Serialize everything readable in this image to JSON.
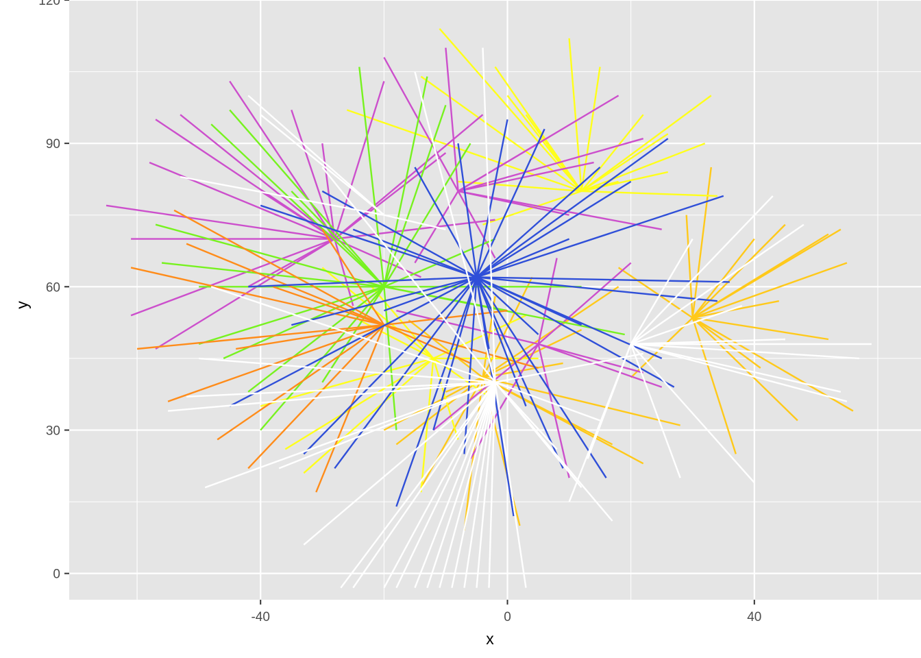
{
  "chart_data": {
    "type": "segments",
    "title": "",
    "xlabel": "x",
    "ylabel": "y",
    "xlim": [
      -71,
      67
    ],
    "ylim": [
      -5.5,
      120
    ],
    "x_ticks": [
      -40,
      0,
      40
    ],
    "x_tick_labels": [
      "-40",
      "0",
      "40"
    ],
    "y_ticks": [
      0,
      30,
      60,
      90,
      120
    ],
    "y_tick_labels": [
      "0",
      "30",
      "60",
      "90",
      "120"
    ],
    "grid": true,
    "panel_background": "#e5e5e5",
    "grid_color": "#ffffff",
    "legend": "none",
    "colors": {
      "blue": "#2f4fd8",
      "magenta": "#cc4fcc",
      "green": "#77f21f",
      "yellow": "#ffff1a",
      "gold": "#ffc91a",
      "orange": "#ff8c1a",
      "white": "#ffffff"
    },
    "series": [
      {
        "color": "#ffc91a",
        "segments": [
          [
            30,
            53.5,
            40,
            70
          ],
          [
            30,
            53.5,
            45,
            73
          ],
          [
            30,
            53.5,
            52,
            71
          ],
          [
            30,
            53.5,
            54,
            72
          ],
          [
            30,
            53.5,
            55,
            65
          ],
          [
            30,
            53.5,
            33,
            85
          ],
          [
            30,
            53.5,
            52,
            49
          ],
          [
            30,
            53.5,
            56,
            34
          ],
          [
            30,
            53.5,
            47,
            32
          ],
          [
            30,
            53.5,
            37,
            25
          ],
          [
            30,
            53.5,
            44,
            57
          ],
          [
            30,
            53.5,
            41,
            43
          ],
          [
            30,
            53.5,
            18,
            64
          ],
          [
            30,
            53.5,
            20,
            41
          ],
          [
            30,
            53.5,
            29,
            75
          ],
          [
            -4,
            41,
            -7,
            9
          ],
          [
            -4,
            41,
            2,
            10
          ],
          [
            -4,
            41,
            17,
            27
          ],
          [
            -4,
            41,
            12,
            51
          ],
          [
            -4,
            41,
            -18,
            27
          ],
          [
            -4,
            41,
            -16,
            53
          ],
          [
            -4,
            41,
            4,
            62
          ],
          [
            -4,
            41,
            -14,
            18
          ],
          [
            -4,
            41,
            22,
            23
          ],
          [
            -4,
            41,
            28,
            31
          ],
          [
            -4,
            41,
            -10,
            38
          ],
          [
            -4,
            41,
            9,
            44
          ],
          [
            -4,
            41,
            -20,
            30
          ],
          [
            -4,
            41,
            18,
            60
          ],
          [
            -4,
            41,
            -2,
            58
          ]
        ]
      },
      {
        "color": "#ffff1a",
        "segments": [
          [
            12,
            80,
            -11,
            114
          ],
          [
            12,
            80,
            -2,
            106
          ],
          [
            12,
            80,
            10,
            112
          ],
          [
            12,
            80,
            22,
            96
          ],
          [
            12,
            80,
            26,
            84
          ],
          [
            12,
            80,
            33,
            100
          ],
          [
            12,
            80,
            32,
            90
          ],
          [
            12,
            80,
            -26,
            97
          ],
          [
            12,
            80,
            15,
            106
          ],
          [
            12,
            80,
            3,
            96
          ],
          [
            12,
            80,
            -8,
            82
          ],
          [
            12,
            80,
            34,
            79
          ],
          [
            12,
            80,
            26,
            92
          ],
          [
            12,
            80,
            -14,
            104
          ],
          [
            12,
            80,
            0,
            100
          ],
          [
            12,
            80,
            -4,
            73
          ],
          [
            12,
            80,
            18,
            82
          ],
          [
            -12,
            45,
            -33,
            21
          ],
          [
            -12,
            45,
            -36,
            26
          ],
          [
            -12,
            45,
            -22,
            60
          ],
          [
            -12,
            45,
            -40,
            35
          ],
          [
            -12,
            45,
            -14,
            17
          ],
          [
            -12,
            45,
            -3,
            37
          ],
          [
            -12,
            45,
            -24,
            53
          ],
          [
            -12,
            45,
            3,
            54
          ],
          [
            -12,
            45,
            -8,
            28
          ],
          [
            -12,
            45,
            -30,
            64
          ],
          [
            -12,
            45,
            5,
            45
          ]
        ]
      },
      {
        "color": "#cc4fcc",
        "segments": [
          [
            -28,
            70,
            -45,
            103
          ],
          [
            -28,
            70,
            -57,
            95
          ],
          [
            -28,
            70,
            -53,
            96
          ],
          [
            -28,
            70,
            -58,
            86
          ],
          [
            -28,
            70,
            -65,
            77
          ],
          [
            -28,
            70,
            -61,
            70
          ],
          [
            -28,
            70,
            -61,
            54
          ],
          [
            -28,
            70,
            -57,
            47
          ],
          [
            -28,
            70,
            -35,
            97
          ],
          [
            -28,
            70,
            -20,
            103
          ],
          [
            -28,
            70,
            -4,
            96
          ],
          [
            -28,
            70,
            -10,
            88
          ],
          [
            -28,
            70,
            -2,
            74
          ],
          [
            -28,
            70,
            -25,
            56
          ],
          [
            -28,
            70,
            -14,
            62
          ],
          [
            -28,
            70,
            -30,
            90
          ],
          [
            -28,
            70,
            -40,
            80
          ],
          [
            -28,
            70,
            -42,
            60
          ],
          [
            -8,
            80,
            -20,
            108
          ],
          [
            -8,
            80,
            -10,
            110
          ],
          [
            -8,
            80,
            5,
            90
          ],
          [
            -8,
            80,
            18,
            100
          ],
          [
            -8,
            80,
            22,
            91
          ],
          [
            -8,
            80,
            14,
            86
          ],
          [
            -8,
            80,
            -2,
            66
          ],
          [
            -8,
            80,
            -15,
            65
          ],
          [
            -8,
            80,
            25,
            72
          ],
          [
            -8,
            80,
            10,
            75
          ],
          [
            5,
            48,
            25,
            39
          ],
          [
            5,
            48,
            22,
            42
          ],
          [
            5,
            48,
            20,
            65
          ],
          [
            5,
            48,
            -6,
            24
          ],
          [
            5,
            48,
            10,
            20
          ],
          [
            5,
            48,
            -12,
            30
          ],
          [
            5,
            48,
            8,
            66
          ],
          [
            5,
            48,
            -18,
            55
          ]
        ]
      },
      {
        "color": "#77f21f",
        "segments": [
          [
            -20,
            60,
            -45,
            97
          ],
          [
            -20,
            60,
            -48,
            94
          ],
          [
            -20,
            60,
            -24,
            106
          ],
          [
            -20,
            60,
            -13,
            104
          ],
          [
            -20,
            60,
            -57,
            73
          ],
          [
            -20,
            60,
            -56,
            65
          ],
          [
            -20,
            60,
            -50,
            60
          ],
          [
            -20,
            60,
            -50,
            48
          ],
          [
            -20,
            60,
            -40,
            30
          ],
          [
            -20,
            60,
            -30,
            40
          ],
          [
            -20,
            60,
            -18,
            30
          ],
          [
            -20,
            60,
            -10,
            98
          ],
          [
            -20,
            60,
            -6,
            90
          ],
          [
            -20,
            60,
            -2,
            70
          ],
          [
            -20,
            60,
            0,
            55
          ],
          [
            -20,
            60,
            19,
            50
          ],
          [
            -20,
            60,
            12,
            60
          ],
          [
            -20,
            60,
            -35,
            80
          ],
          [
            -20,
            60,
            -46,
            45
          ],
          [
            -20,
            60,
            -42,
            38
          ]
        ]
      },
      {
        "color": "#ff8c1a",
        "segments": [
          [
            -20,
            52,
            -60,
            47
          ],
          [
            -20,
            52,
            -61,
            64
          ],
          [
            -20,
            52,
            -54,
            76
          ],
          [
            -20,
            52,
            -55,
            36
          ],
          [
            -20,
            52,
            -47,
            28
          ],
          [
            -20,
            52,
            -42,
            22
          ],
          [
            -20,
            52,
            -31,
            17
          ],
          [
            -20,
            52,
            -38,
            60
          ],
          [
            -20,
            52,
            -30,
            72
          ],
          [
            -20,
            52,
            0,
            55
          ],
          [
            -20,
            52,
            5,
            43
          ],
          [
            -20,
            52,
            -6,
            44
          ],
          [
            -20,
            52,
            -44,
            47
          ],
          [
            -20,
            52,
            -52,
            69
          ]
        ]
      },
      {
        "color": "#2f4fd8",
        "segments": [
          [
            -5,
            62,
            -18,
            14
          ],
          [
            -5,
            62,
            -28,
            22
          ],
          [
            -5,
            62,
            -33,
            25
          ],
          [
            -5,
            62,
            -45,
            35
          ],
          [
            -5,
            62,
            -40,
            77
          ],
          [
            -5,
            62,
            -42,
            60
          ],
          [
            -5,
            62,
            -30,
            80
          ],
          [
            -5,
            62,
            -25,
            72
          ],
          [
            -5,
            62,
            -8,
            90
          ],
          [
            -5,
            62,
            0,
            95
          ],
          [
            -5,
            62,
            6,
            93
          ],
          [
            -5,
            62,
            15,
            85
          ],
          [
            -5,
            62,
            26,
            91
          ],
          [
            -5,
            62,
            20,
            82
          ],
          [
            -5,
            62,
            35,
            79
          ],
          [
            -5,
            62,
            36,
            61
          ],
          [
            -5,
            62,
            34,
            57
          ],
          [
            -5,
            62,
            25,
            45
          ],
          [
            -5,
            62,
            27,
            39
          ],
          [
            -5,
            62,
            16,
            20
          ],
          [
            -5,
            62,
            9,
            22
          ],
          [
            -5,
            62,
            3,
            35
          ],
          [
            -5,
            62,
            -7,
            25
          ],
          [
            -5,
            62,
            -12,
            30
          ],
          [
            -5,
            62,
            1,
            12
          ],
          [
            -5,
            62,
            -3,
            47
          ],
          [
            -5,
            62,
            12,
            52
          ],
          [
            -5,
            62,
            -20,
            55
          ],
          [
            -5,
            62,
            -35,
            52
          ],
          [
            -5,
            62,
            -15,
            85
          ],
          [
            -5,
            62,
            10,
            70
          ],
          [
            -5,
            62,
            5,
            50
          ]
        ]
      },
      {
        "color": "#ffffff",
        "segments": [
          [
            -2,
            40,
            -7,
            -3
          ],
          [
            -2,
            40,
            -5,
            -3
          ],
          [
            -2,
            40,
            -3,
            -3
          ],
          [
            -2,
            40,
            -9,
            -3
          ],
          [
            -2,
            40,
            -11,
            -3
          ],
          [
            -2,
            40,
            -13,
            -3
          ],
          [
            -2,
            40,
            -15,
            -3
          ],
          [
            -2,
            40,
            -18,
            -3
          ],
          [
            -2,
            40,
            -20,
            -3
          ],
          [
            -2,
            40,
            -25,
            -3
          ],
          [
            -2,
            40,
            -27,
            -3
          ],
          [
            -2,
            40,
            3,
            -3
          ],
          [
            -2,
            40,
            -33,
            6
          ],
          [
            -2,
            40,
            -37,
            22
          ],
          [
            -2,
            40,
            -49,
            18
          ],
          [
            -2,
            40,
            -55,
            34
          ],
          [
            -2,
            40,
            -52,
            37
          ],
          [
            -2,
            40,
            17,
            11
          ],
          [
            -2,
            40,
            12,
            18
          ],
          [
            -2,
            40,
            8,
            26
          ],
          [
            -2,
            40,
            -4,
            110
          ],
          [
            -2,
            40,
            -15,
            105
          ],
          [
            -2,
            40,
            -30,
            85
          ],
          [
            -2,
            40,
            -48,
            60
          ],
          [
            -2,
            40,
            -50,
            45
          ],
          [
            -2,
            40,
            15,
            32
          ],
          [
            -2,
            40,
            22,
            46
          ],
          [
            20,
            48,
            59,
            48
          ],
          [
            20,
            48,
            57,
            45
          ],
          [
            20,
            48,
            54,
            38
          ],
          [
            20,
            48,
            40,
            19
          ],
          [
            20,
            48,
            28,
            20
          ],
          [
            20,
            48,
            13,
            24
          ],
          [
            20,
            48,
            10,
            15
          ],
          [
            20,
            48,
            43,
            79
          ],
          [
            20,
            48,
            48,
            73
          ],
          [
            20,
            48,
            38,
            56
          ],
          [
            20,
            48,
            30,
            70
          ],
          [
            20,
            48,
            55,
            36
          ],
          [
            20,
            48,
            45,
            49
          ],
          [
            -20,
            75,
            -42,
            100
          ],
          [
            -20,
            75,
            -53,
            83
          ],
          [
            -20,
            75,
            -40,
            96
          ],
          [
            -20,
            75,
            -10,
            72
          ]
        ]
      }
    ]
  }
}
